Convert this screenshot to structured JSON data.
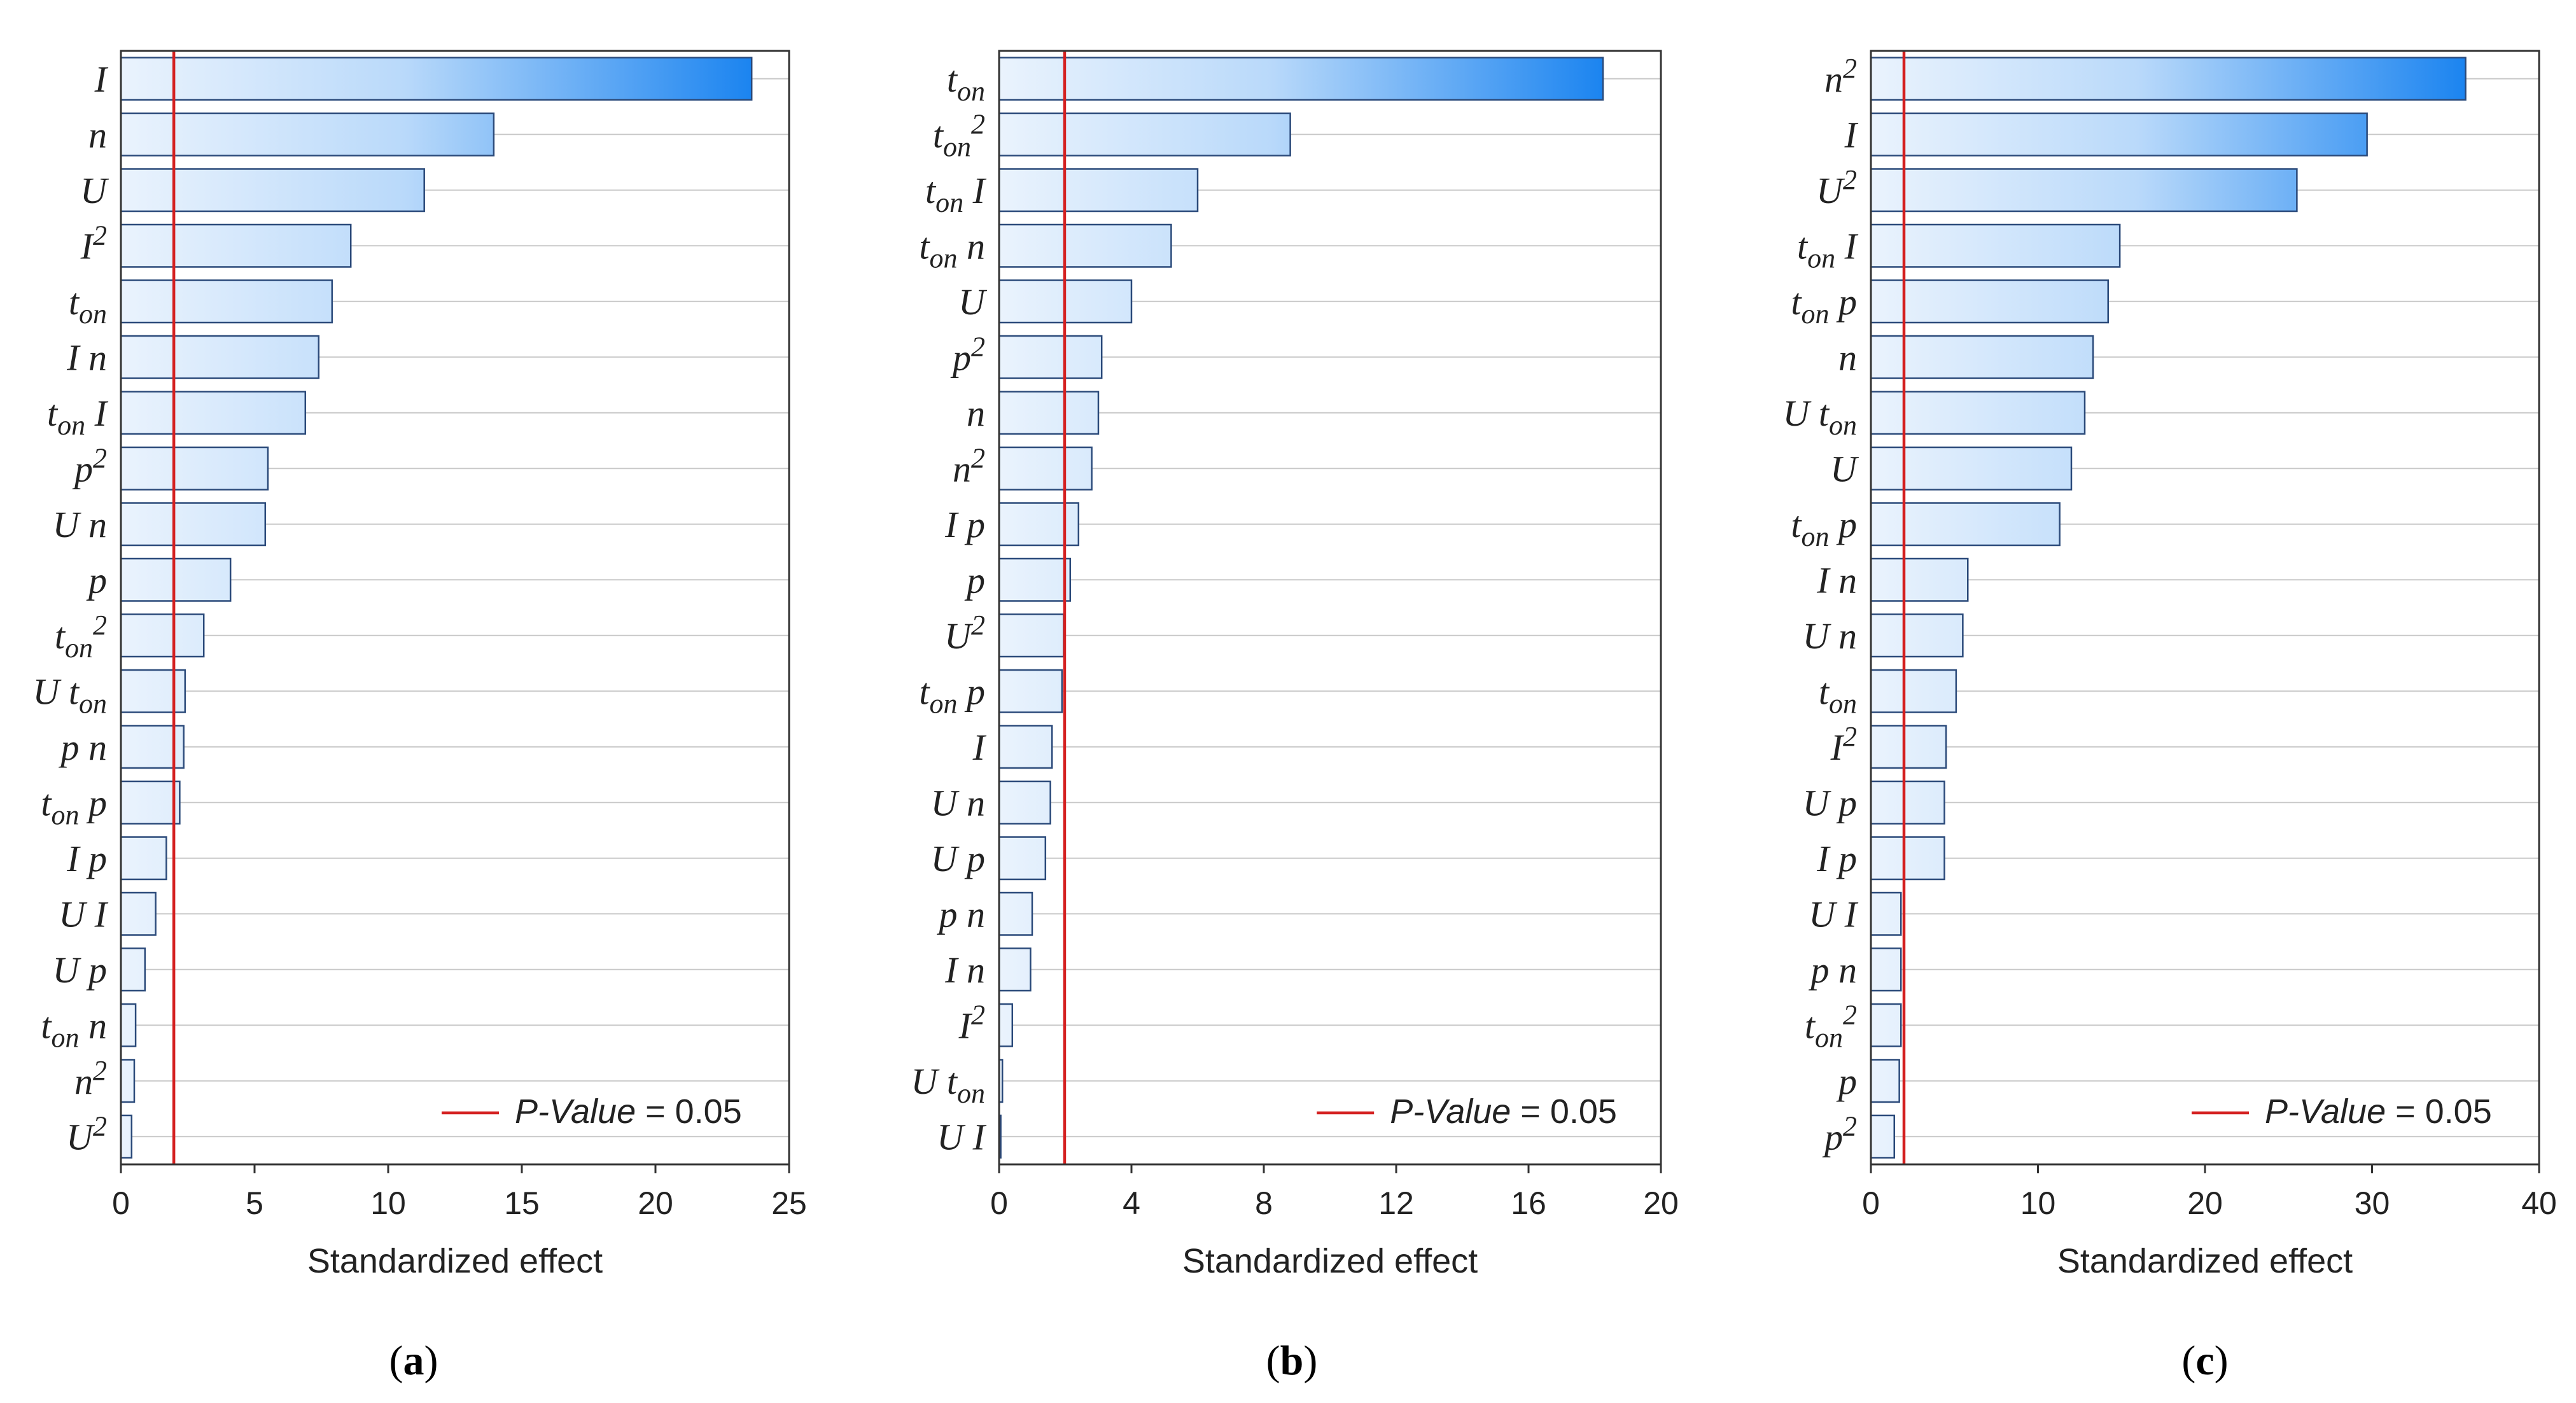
{
  "charts": [
    {
      "id": "a",
      "caption": "a",
      "xlabel": "Standardized effect",
      "xlim": [
        0,
        25
      ],
      "xticks": [
        0,
        5,
        10,
        15,
        20,
        25
      ],
      "threshold": 1.98,
      "legend": {
        "label_italic": "P-Value",
        "label_rest": " = 0.05"
      },
      "max_value": 23.6,
      "bars": [
        {
          "label": "I",
          "value": 23.6
        },
        {
          "label": "n",
          "value": 13.95
        },
        {
          "label": "U",
          "value": 11.35
        },
        {
          "label": "I²",
          "value": 8.6
        },
        {
          "label": "t_on",
          "value": 7.9
        },
        {
          "label": "I n",
          "value": 7.4
        },
        {
          "label": "t_on I",
          "value": 6.9
        },
        {
          "label": "p²",
          "value": 5.5
        },
        {
          "label": "U n",
          "value": 5.4
        },
        {
          "label": "p",
          "value": 4.1
        },
        {
          "label": "t_on²",
          "value": 3.1
        },
        {
          "label": "U t_on",
          "value": 2.4
        },
        {
          "label": "p n",
          "value": 2.35
        },
        {
          "label": "t_on p",
          "value": 2.2
        },
        {
          "label": "I p",
          "value": 1.7
        },
        {
          "label": "U I",
          "value": 1.3
        },
        {
          "label": "U p",
          "value": 0.9
        },
        {
          "label": "t_on n",
          "value": 0.55
        },
        {
          "label": "n²",
          "value": 0.5
        },
        {
          "label": "U²",
          "value": 0.4
        }
      ]
    },
    {
      "id": "b",
      "caption": "b",
      "xlabel": "Standardized effect",
      "xlim": [
        0,
        20
      ],
      "xticks": [
        0,
        4,
        8,
        12,
        16,
        20
      ],
      "threshold": 1.98,
      "legend": {
        "label_italic": "P-Value",
        "label_rest": " = 0.05"
      },
      "max_value": 18.25,
      "bars": [
        {
          "label": "t_on",
          "value": 18.25
        },
        {
          "label": "t_on²",
          "value": 8.8
        },
        {
          "label": "t_on I",
          "value": 6.0
        },
        {
          "label": "t_on n",
          "value": 5.2
        },
        {
          "label": "U",
          "value": 4.0
        },
        {
          "label": "p²",
          "value": 3.1
        },
        {
          "label": "n",
          "value": 3.0
        },
        {
          "label": "n²",
          "value": 2.8
        },
        {
          "label": "I p",
          "value": 2.4
        },
        {
          "label": "p",
          "value": 2.15
        },
        {
          "label": "U²",
          "value": 1.95
        },
        {
          "label": "t_on p",
          "value": 1.9
        },
        {
          "label": "I",
          "value": 1.6
        },
        {
          "label": "U n",
          "value": 1.55
        },
        {
          "label": "U p",
          "value": 1.4
        },
        {
          "label": "p n",
          "value": 1.0
        },
        {
          "label": "I n",
          "value": 0.95
        },
        {
          "label": "I²",
          "value": 0.4
        },
        {
          "label": "U t_on",
          "value": 0.1
        },
        {
          "label": "U I",
          "value": 0.05
        }
      ]
    },
    {
      "id": "c",
      "caption": "c",
      "xlabel": "Standardized effect",
      "xlim": [
        0,
        40
      ],
      "xticks": [
        0,
        10,
        20,
        30,
        40
      ],
      "threshold": 1.98,
      "legend": {
        "label_italic": "P-Value",
        "label_rest": " = 0.05"
      },
      "max_value": 35.6,
      "bars": [
        {
          "label": "n²",
          "value": 35.6
        },
        {
          "label": "I",
          "value": 29.7
        },
        {
          "label": "U²",
          "value": 25.5
        },
        {
          "label": "t_on I",
          "value": 14.9
        },
        {
          "label": "t_on p",
          "value": 14.2
        },
        {
          "label": "n",
          "value": 13.3
        },
        {
          "label": "U t_on",
          "value": 12.8
        },
        {
          "label": "U",
          "value": 12.0
        },
        {
          "label": "t_on p",
          "value": 11.3
        },
        {
          "label": "I n",
          "value": 5.8
        },
        {
          "label": "U n",
          "value": 5.5
        },
        {
          "label": "t_on",
          "value": 5.1
        },
        {
          "label": "I²",
          "value": 4.5
        },
        {
          "label": "U p",
          "value": 4.4
        },
        {
          "label": "I p",
          "value": 4.4
        },
        {
          "label": "U I",
          "value": 1.8
        },
        {
          "label": "p n",
          "value": 1.8
        },
        {
          "label": "t_on²",
          "value": 1.8
        },
        {
          "label": "p",
          "value": 1.7
        },
        {
          "label": "p²",
          "value": 1.4
        }
      ]
    }
  ],
  "colors": {
    "bar_light": "#eaf3fd",
    "bar_dark": "#1b84f0",
    "bar_edge": "#2b4a7a",
    "threshold": "#d42020",
    "grid": "#c9c9c9"
  }
}
